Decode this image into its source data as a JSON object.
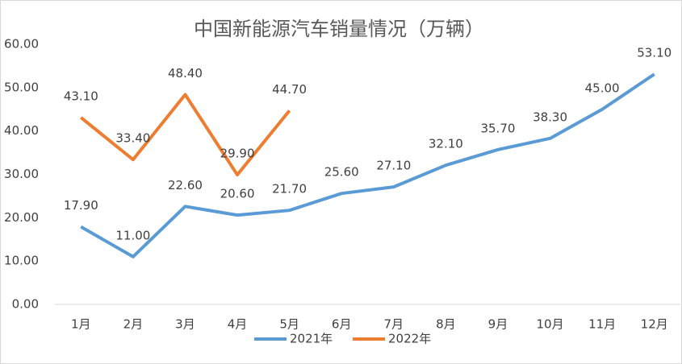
{
  "chart_data": {
    "type": "line",
    "title": "中国新能源汽车销量情况（万辆）",
    "categories": [
      "1月",
      "2月",
      "3月",
      "4月",
      "5月",
      "6月",
      "7月",
      "8月",
      "9月",
      "10月",
      "11月",
      "12月"
    ],
    "series": [
      {
        "name": "2021年",
        "color": "#5b9bd5",
        "values": [
          17.9,
          11.0,
          22.6,
          20.6,
          21.7,
          25.6,
          27.1,
          32.1,
          35.7,
          38.3,
          45.0,
          53.1
        ],
        "value_labels": [
          "17.90",
          "11.00",
          "22.60",
          "20.60",
          "21.70",
          "25.60",
          "27.10",
          "32.10",
          "35.70",
          "38.30",
          "45.00",
          "53.10"
        ]
      },
      {
        "name": "2022年",
        "color": "#ed7d31",
        "values": [
          43.1,
          33.4,
          48.4,
          29.9,
          44.7,
          null,
          null,
          null,
          null,
          null,
          null,
          null
        ],
        "value_labels": [
          "43.10",
          "33.40",
          "48.40",
          "29.90",
          "44.70",
          null,
          null,
          null,
          null,
          null,
          null,
          null
        ]
      }
    ],
    "ylim": [
      0,
      60
    ],
    "yticks": [
      {
        "value": 0,
        "label": "0.00"
      },
      {
        "value": 10,
        "label": "10.00"
      },
      {
        "value": 20,
        "label": "20.00"
      },
      {
        "value": 30,
        "label": "30.00"
      },
      {
        "value": 40,
        "label": "40.00"
      },
      {
        "value": 50,
        "label": "50.00"
      },
      {
        "value": 60,
        "label": "60.00"
      }
    ],
    "grid": false,
    "legend": "bottom"
  }
}
